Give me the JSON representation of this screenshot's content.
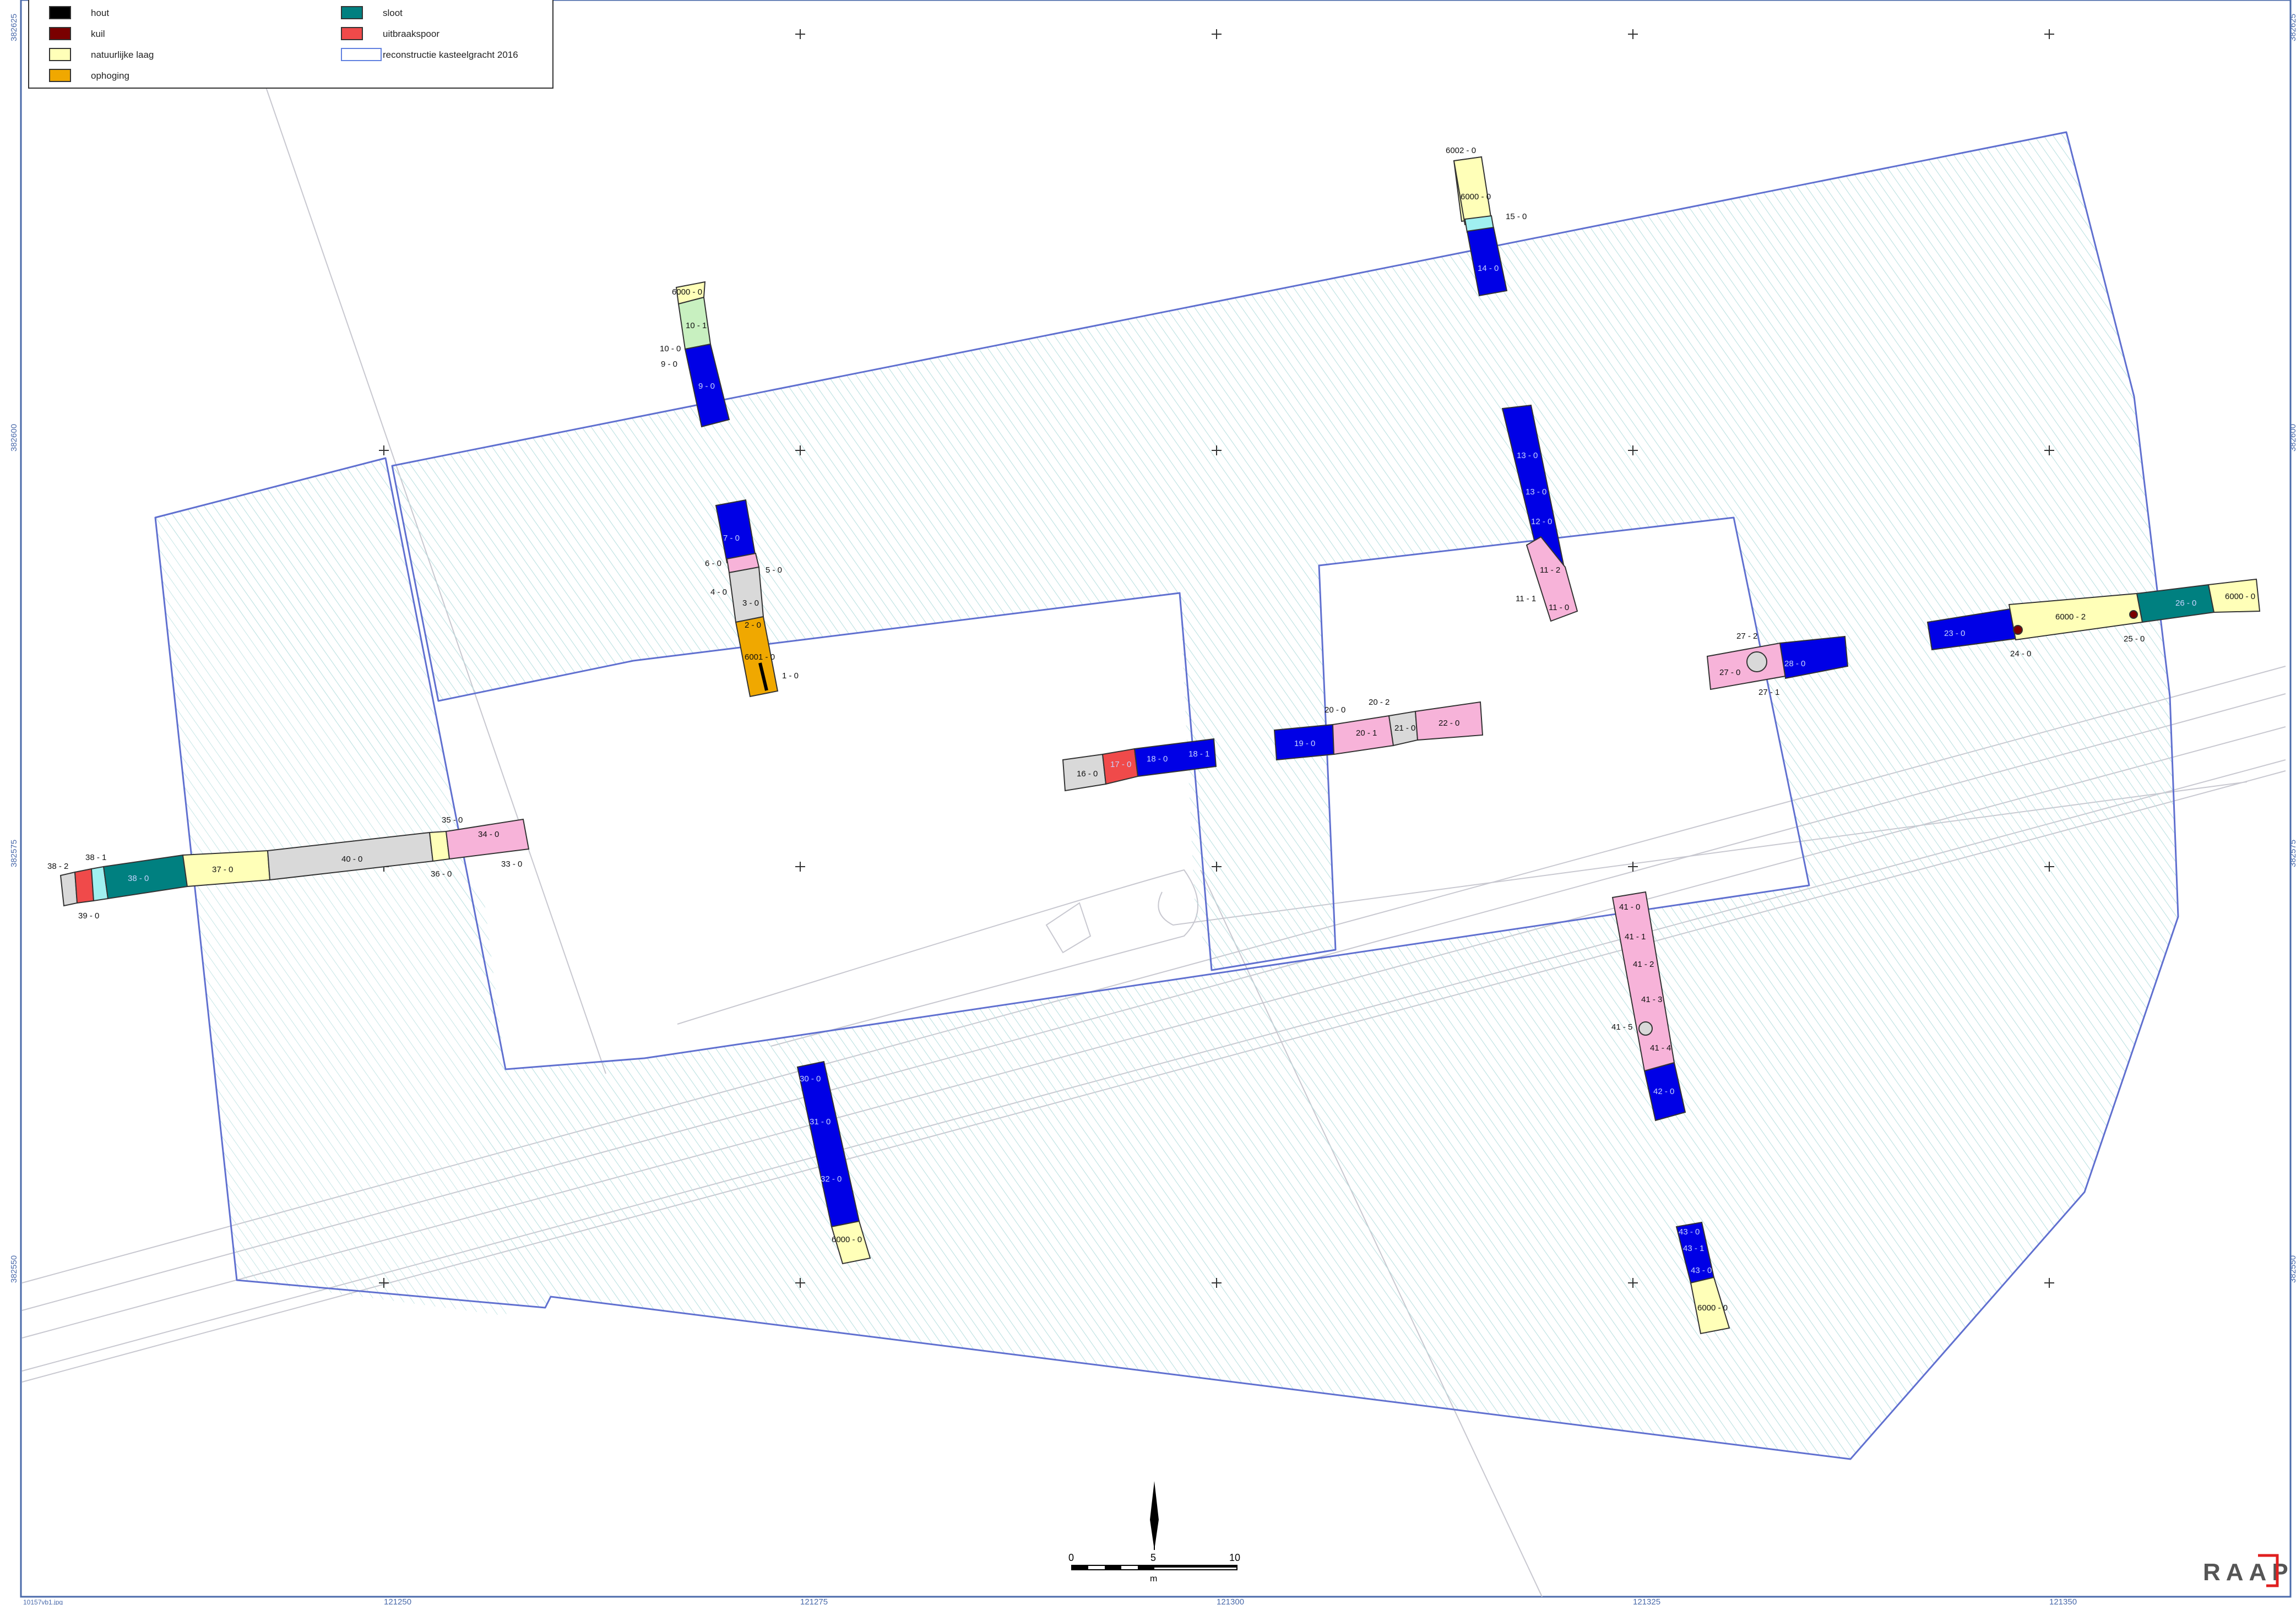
{
  "legend": {
    "items": [
      {
        "label": "hout",
        "color": "#000000"
      },
      {
        "label": "kuil",
        "color": "#7a0000"
      },
      {
        "label": "natuurlijke laag",
        "color": "#ffffb8"
      },
      {
        "label": "ophoging",
        "color": "#f0a800"
      },
      {
        "label": "sloot",
        "color": "#008080"
      },
      {
        "label": "uitbraakspoor",
        "color": "#f04a4a"
      },
      {
        "label": "reconstructie kasteelgracht 2016",
        "color": "#6080e0"
      }
    ]
  },
  "colors": {
    "recent": "#0000e6",
    "recent_label": "#c8d4ff",
    "pink": "#f7b3d9",
    "grey": "#d9d9d9",
    "natural": "#ffffb8",
    "ophoging": "#f0a800",
    "sloot": "#008080",
    "uitbraak": "#f04a4a",
    "kuil": "#7a0000",
    "green": "#c8f0c0",
    "cyan": "#a0f0f0",
    "outline": "#6070d0",
    "frame": "#4a6aaa"
  },
  "coordinates": {
    "y_labels": [
      "382625",
      "382600",
      "382575",
      "382550"
    ],
    "x_labels": [
      "121250",
      "121275",
      "121300",
      "121325",
      "121350"
    ]
  },
  "scalebar": {
    "start": "0",
    "mid": "5",
    "end": "10",
    "unit": "m"
  },
  "logo": "RAAP",
  "corner_text": "10157vb1.jpg",
  "segment_labels": {
    "a": "6000 - 0",
    "b": "10 - 1",
    "c": "10 - 0",
    "d": "9 - 0",
    "e": "9 - 0",
    "f": "6002 - 0",
    "g": "6000 - 0",
    "h": "15 - 0",
    "i": "14 - 0",
    "j": "7 - 0",
    "k": "6 - 0",
    "l": "5 - 0",
    "m": "4 - 0",
    "n": "3 - 0",
    "o": "2 - 0",
    "p": "6001 - 0",
    "q": "1 - 0",
    "r": "13 - 0",
    "s": "13 - 0",
    "t": "12 - 0",
    "u": "11 - 2",
    "v": "11 - 1",
    "w": "11 - 0",
    "x": "27 - 2",
    "y": "27 - 0",
    "z": "28 - 0",
    "aa": "27 - 1",
    "ab": "23 - 0",
    "ac": "6000 - 2",
    "ad": "26 - 0",
    "ae": "6000 - 0",
    "af": "24 - 0",
    "ag": "25 - 0",
    "ah": "20 - 0",
    "ai": "20 - 2",
    "aj": "20 - 1",
    "ak": "21 - 0",
    "al": "22 - 0",
    "am": "19 - 0",
    "an": "16 - 0",
    "ao": "17 - 0",
    "ap": "18 - 0",
    "aq": "18 - 1",
    "ar": "38 - 2",
    "as": "38 - 1",
    "at": "38 - 0",
    "au": "37 - 0",
    "av": "40 - 0",
    "aw": "35 - 0",
    "ax": "34 - 0",
    "ay": "36 - 0",
    "az": "33 - 0",
    "ba": "39 - 0",
    "bb": "41 - 0",
    "bc": "41 - 1",
    "bd": "41 - 2",
    "be": "41 - 3",
    "bf": "41 - 5",
    "bg": "41 - 4",
    "bh": "42 - 0",
    "bi": "30 - 0",
    "bj": "31 - 0",
    "bk": "32 - 0",
    "bl": "6000 - 0",
    "bm": "43 - 0",
    "bn": "43 - 1",
    "bo": "43 - 0",
    "bp": "6000 - 0"
  }
}
